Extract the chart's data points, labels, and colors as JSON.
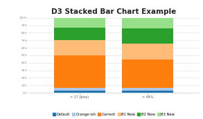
{
  "title": "D3 Stacked Bar Chart Example",
  "title_fontsize": 7.5,
  "bar_labels": [
    "< 17 (bins)",
    "< 44%"
  ],
  "segments": [
    {
      "label": "Default",
      "color": "#1f77b4",
      "values": [
        0.03,
        0.03
      ]
    },
    {
      "label": "Orange-ish",
      "color": "#aec7e8",
      "values": [
        0.04,
        0.04
      ]
    },
    {
      "label": "Current",
      "color": "#ff7f0e",
      "values": [
        0.43,
        0.37
      ]
    },
    {
      "label": "B1 New",
      "color": "#ffbb78",
      "values": [
        0.2,
        0.22
      ]
    },
    {
      "label": "B2 New",
      "color": "#2ca02c",
      "values": [
        0.17,
        0.2
      ]
    },
    {
      "label": "B3 New",
      "color": "#98df8a",
      "values": [
        0.13,
        0.14
      ]
    }
  ],
  "ylim": [
    0,
    1.0
  ],
  "yticks": [
    0,
    0.1,
    0.2,
    0.3,
    0.4,
    0.5,
    0.6,
    0.7,
    0.8,
    0.9,
    1.0
  ],
  "ytick_labels": [
    "0%",
    "10%",
    "20%",
    "30%",
    "40%",
    "50%",
    "60%",
    "70%",
    "80%",
    "90%",
    "100%"
  ],
  "background_color": "#ffffff",
  "bar_width": 0.3,
  "legend_fontsize": 3.8,
  "bar_positions": [
    0.3,
    0.7
  ],
  "xlim": [
    0.0,
    1.0
  ]
}
